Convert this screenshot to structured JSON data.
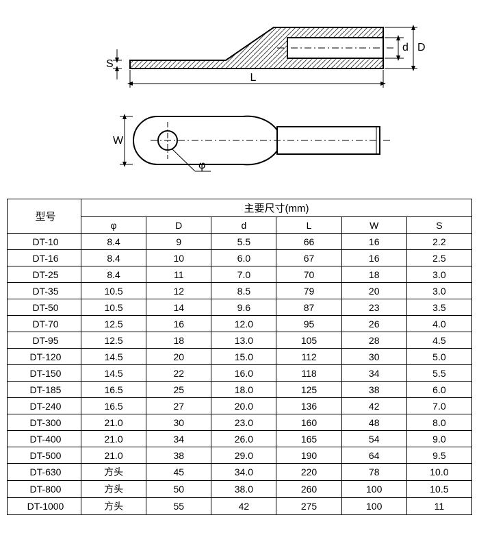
{
  "diagram": {
    "stroke": "#000000",
    "hatch_stroke": "#444444",
    "hatch_spacing": 7,
    "fill": "#ffffff",
    "labels": {
      "S": "S",
      "L": "L",
      "D": "D",
      "d": "d",
      "W": "W",
      "phi": "φ"
    }
  },
  "table": {
    "header_model": "型号",
    "header_main": "主要尺寸(mm)",
    "columns": [
      "φ",
      "D",
      "d",
      "L",
      "W",
      "S"
    ],
    "rows": [
      {
        "model": "DT-10",
        "phi": "8.4",
        "D": "9",
        "d": "5.5",
        "L": "66",
        "W": "16",
        "S": "2.2"
      },
      {
        "model": "DT-16",
        "phi": "8.4",
        "D": "10",
        "d": "6.0",
        "L": "67",
        "W": "16",
        "S": "2.5"
      },
      {
        "model": "DT-25",
        "phi": "8.4",
        "D": "11",
        "d": "7.0",
        "L": "70",
        "W": "18",
        "S": "3.0"
      },
      {
        "model": "DT-35",
        "phi": "10.5",
        "D": "12",
        "d": "8.5",
        "L": "79",
        "W": "20",
        "S": "3.0"
      },
      {
        "model": "DT-50",
        "phi": "10.5",
        "D": "14",
        "d": "9.6",
        "L": "87",
        "W": "23",
        "S": "3.5"
      },
      {
        "model": "DT-70",
        "phi": "12.5",
        "D": "16",
        "d": "12.0",
        "L": "95",
        "W": "26",
        "S": "4.0"
      },
      {
        "model": "DT-95",
        "phi": "12.5",
        "D": "18",
        "d": "13.0",
        "L": "105",
        "W": "28",
        "S": "4.5"
      },
      {
        "model": "DT-120",
        "phi": "14.5",
        "D": "20",
        "d": "15.0",
        "L": "112",
        "W": "30",
        "S": "5.0"
      },
      {
        "model": "DT-150",
        "phi": "14.5",
        "D": "22",
        "d": "16.0",
        "L": "118",
        "W": "34",
        "S": "5.5"
      },
      {
        "model": "DT-185",
        "phi": "16.5",
        "D": "25",
        "d": "18.0",
        "L": "125",
        "W": "38",
        "S": "6.0"
      },
      {
        "model": "DT-240",
        "phi": "16.5",
        "D": "27",
        "d": "20.0",
        "L": "136",
        "W": "42",
        "S": "7.0"
      },
      {
        "model": "DT-300",
        "phi": "21.0",
        "D": "30",
        "d": "23.0",
        "L": "160",
        "W": "48",
        "S": "8.0"
      },
      {
        "model": "DT-400",
        "phi": "21.0",
        "D": "34",
        "d": "26.0",
        "L": "165",
        "W": "54",
        "S": "9.0"
      },
      {
        "model": "DT-500",
        "phi": "21.0",
        "D": "38",
        "d": "29.0",
        "L": "190",
        "W": "64",
        "S": "9.5"
      },
      {
        "model": "DT-630",
        "phi": "方头",
        "D": "45",
        "d": "34.0",
        "L": "220",
        "W": "78",
        "S": "10.0"
      },
      {
        "model": "DT-800",
        "phi": "方头",
        "D": "50",
        "d": "38.0",
        "L": "260",
        "W": "100",
        "S": "10.5"
      },
      {
        "model": "DT-1000",
        "phi": "方头",
        "D": "55",
        "d": "42",
        "L": "275",
        "W": "100",
        "S": "11"
      }
    ]
  }
}
